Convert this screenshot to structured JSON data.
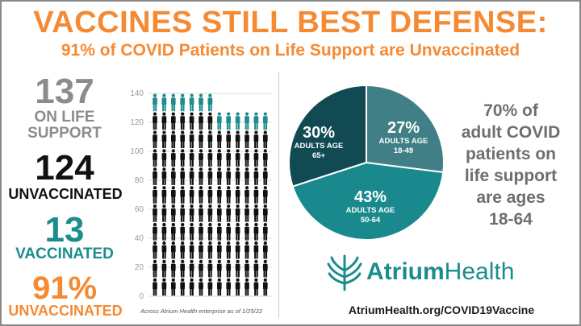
{
  "colors": {
    "accent": "#f58a33",
    "gray": "#8c8c8c",
    "black": "#111111",
    "teal": "#1c8c8e",
    "pie_dark": "#124a54",
    "pie_mid": "#19898d",
    "pie_light": "#3f7f85"
  },
  "header": {
    "title": "VACCINES STILL BEST DEFENSE:",
    "subtitle": "91% of COVID Patients on Life Support are Unvaccinated"
  },
  "stats": {
    "total_value": "137",
    "total_label_1": "ON LIFE",
    "total_label_2": "SUPPORT",
    "unvaccinated_value": "124",
    "unvaccinated_label": "UNVACCINATED",
    "vaccinated_value": "13",
    "vaccinated_label": "VACCINATED",
    "percent_value": "91%",
    "percent_label": "UNVACCINATED"
  },
  "pie_labels": [
    {
      "pct": "30%",
      "line1": "ADULTS AGE",
      "line2": "65+"
    },
    {
      "pct": "27%",
      "line1": "ADULTS AGE",
      "line2": "18-49"
    },
    {
      "pct": "43%",
      "line1": "ADULTS AGE",
      "line2": "50-64"
    }
  ],
  "sidenote": {
    "line1": "70% of",
    "line2": "adult COVID",
    "line3": "patients on",
    "line4": "life support",
    "line5": "are ages",
    "line6": "18-64"
  },
  "brand": {
    "name_bold": "Atrium",
    "name_regular": "Health",
    "url": "AtriumHealth.org/COVID19Vaccine"
  },
  "footnote": "Across Atrium Health enterprise as of 1/25/22",
  "chart_data": [
    {
      "type": "bar",
      "title": "",
      "xlabel": "",
      "ylabel": "",
      "ylim": [
        0,
        140
      ],
      "yticks": [
        0,
        20,
        40,
        60,
        80,
        100,
        120,
        140
      ],
      "grid": true,
      "categories": [
        "On life support"
      ],
      "series": [
        {
          "values": [
            124
          ]
        },
        {
          "values": [
            13
          ]
        }
      ],
      "icons_per_row": 13,
      "icons_total": 137
    },
    {
      "type": "pie",
      "title": "",
      "categories": [
        "ADULTS AGE 65+",
        "ADULTS AGE 18-49",
        "ADULTS AGE 50-64"
      ],
      "values": [
        30,
        27,
        43
      ]
    }
  ]
}
